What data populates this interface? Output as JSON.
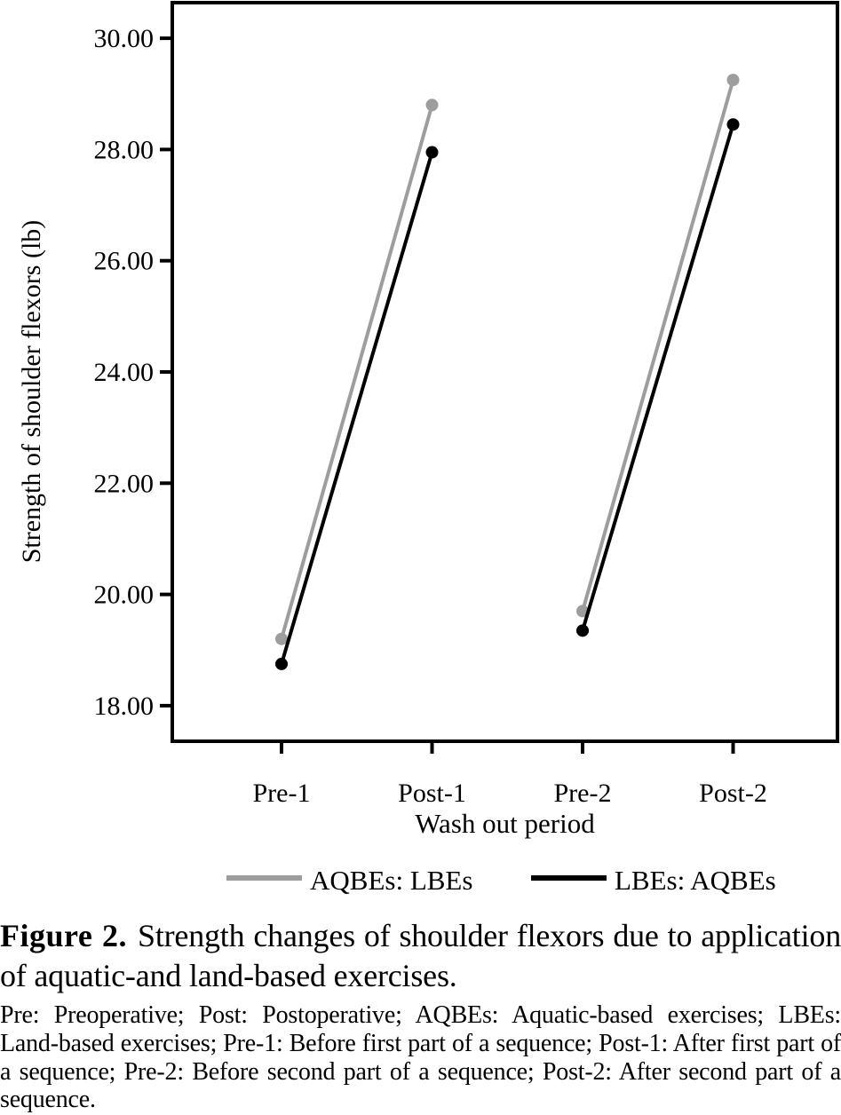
{
  "figure": {
    "caption_label": "Figure 2.",
    "caption_text": "Strength changes of shoulder flexors due to application of aquatic-and land-based exercises.",
    "footnote": "Pre: Preoperative; Post: Postoperative; AQBEs: Aquatic-based exercises; LBEs: Land-based exercises; Pre-1: Before first part of a sequence; Post-1: After first part of a sequence; Pre-2: Before second part of a sequence; Post-2: After second part of a sequence."
  },
  "chart_data": {
    "type": "line",
    "categories": [
      "Pre-1",
      "Post-1",
      "Pre-2",
      "Post-2"
    ],
    "series": [
      {
        "name": "AQBEs: LBEs",
        "color": "#9d9d9d",
        "values": [
          19.2,
          28.8,
          19.7,
          29.25
        ]
      },
      {
        "name": "LBEs: AQBEs",
        "color": "#000000",
        "values": [
          18.75,
          27.95,
          19.35,
          28.45
        ]
      }
    ],
    "segments": [
      [
        0,
        1
      ],
      [
        2,
        3
      ]
    ],
    "xlabel": "Wash out period",
    "ylabel": "Strength of shoulder flexors (lb)",
    "yticks": [
      "30.00",
      "28.00",
      "26.00",
      "24.00",
      "22.00",
      "20.00",
      "18.00"
    ],
    "ytick_values": [
      30,
      28,
      26,
      24,
      22,
      20,
      18
    ],
    "ylim": [
      17.36,
      30.64
    ],
    "grid": false,
    "legend_position": "bottom",
    "marker": "circle",
    "frame": true
  }
}
